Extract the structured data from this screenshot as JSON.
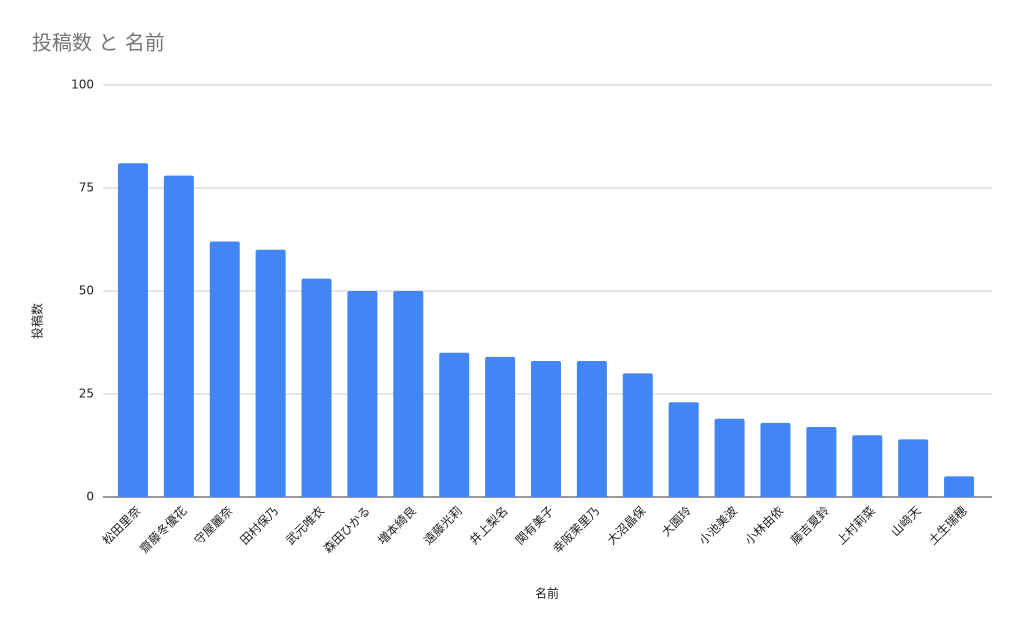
{
  "chart_data": {
    "type": "bar",
    "title": "投稿数 と 名前",
    "x_label": "名前",
    "y_label": "投稿数",
    "categories": [
      "松田里奈",
      "齋藤冬優花",
      "守屋麗奈",
      "田村保乃",
      "武元唯衣",
      "森田ひかる",
      "増本綺良",
      "遠藤光莉",
      "井上梨名",
      "関有美子",
      "幸阪茉里乃",
      "大沼晶保",
      "大園玲",
      "小池美波",
      "小林由依",
      "藤吉夏鈴",
      "上村莉菜",
      "山﨑天",
      "土生瑞穂"
    ],
    "values": [
      81,
      78,
      62,
      60,
      53,
      50,
      50,
      35,
      34,
      33,
      33,
      30,
      23,
      19,
      18,
      17,
      15,
      14,
      5
    ],
    "color": "#4285f4",
    "ylim": [
      0,
      100
    ],
    "yticks": [
      0,
      25,
      50,
      75,
      100
    ],
    "grid": true
  }
}
